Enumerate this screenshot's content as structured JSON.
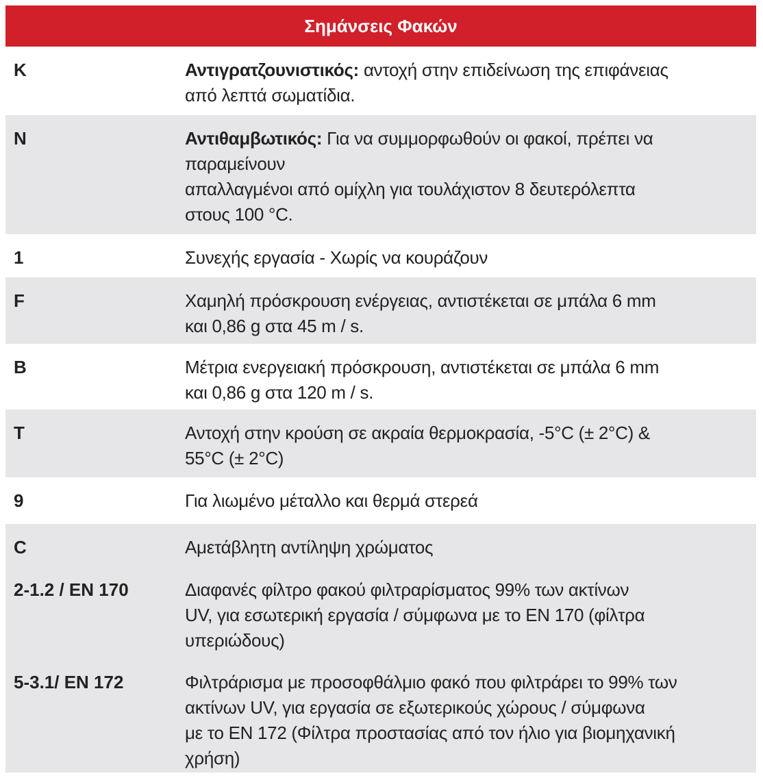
{
  "title": "Σημάνσεις Φακών",
  "colors": {
    "header_bg": "#d1202a",
    "row_alt_bg": "#e6e6e8"
  },
  "rows": [
    {
      "code": "K",
      "term": "Αντιγρατζουνιστικός:",
      "text": " αντοχή στην επιδείνωση της επιφάνειας\nαπό λεπτά σωματίδια."
    },
    {
      "code": "N",
      "term": "Αντιθαμβωτικός:",
      "text": " Για να συμμορφωθούν οι φακοί, πρέπει να\nπαραμείνουν\nαπαλλαγμένοι από ομίχλη για τουλάχιστον 8 δευτερόλεπτα\nστους 100 °C."
    },
    {
      "code": "1",
      "term": "",
      "text": "Συνεχής εργασία - Χωρίς να κουράζουν"
    },
    {
      "code": "F",
      "term": "",
      "text": "Χαμηλή πρόσκρουση ενέργειας, αντιστέκεται σε μπάλα 6 mm\nκαι 0,86 g στα 45 m / s."
    },
    {
      "code": "B",
      "term": "",
      "text": "Μέτρια ενεργειακή πρόσκρουση, αντιστέκεται σε μπάλα 6 mm\nκαι 0,86 g στα 120 m / s."
    },
    {
      "code": "T",
      "term": "",
      "text": "Αντοχή στην κρούση σε ακραία θερμοκρασία, -5°C (± 2°C) &\n55°C (± 2°C)"
    },
    {
      "code": "9",
      "term": "",
      "text": "Για λιωμένο μέταλλο και θερμά στερεά"
    },
    {
      "code": "C",
      "term": "",
      "text": "Αμετάβλητη αντίληψη χρώματος"
    },
    {
      "code": "2-1.2 / EN 170",
      "term": "",
      "text": "Διαφανές φίλτρο φακού φιλτραρίσματος 99% των ακτίνων\nUV, για εσωτερική εργασία / σύμφωνα με το EN 170 (φίλτρα\nυπεριώδους)"
    },
    {
      "code": "5-3.1/ EN 172",
      "term": "",
      "text": "Φιλτράρισμα με προσοφθάλμιο φακό που φιλτράρει το 99% των\nακτίνων UV, για εργασία σε εξωτερικούς χώρους / σύμφωνα\nμε το EN 172 (Φίλτρα προστασίας από τον ήλιο για βιομηχανική\nχρήση)"
    }
  ]
}
